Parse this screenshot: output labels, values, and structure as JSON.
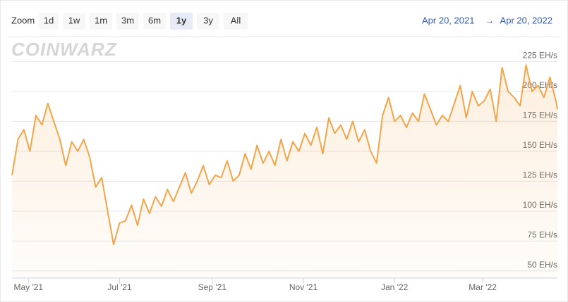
{
  "chart_data": {
    "type": "area",
    "zoom_label": "Zoom",
    "zoom_buttons": [
      "1d",
      "1w",
      "1m",
      "3m",
      "6m",
      "1y",
      "3y",
      "All"
    ],
    "selected_zoom": 5,
    "range_start": "Apr 20, 2021",
    "range_separator": "→",
    "range_end": "Apr 20, 2022",
    "watermark": "COINWARZ",
    "color": "#f2a54a",
    "grid": true,
    "xlim": [
      0,
      365
    ],
    "xticks": [
      {
        "value": 11,
        "label": "May '21"
      },
      {
        "value": 72,
        "label": "Jul '21"
      },
      {
        "value": 134,
        "label": "Sep '21"
      },
      {
        "value": 195,
        "label": "Nov '21"
      },
      {
        "value": 256,
        "label": "Jan '22"
      },
      {
        "value": 315,
        "label": "Mar '22"
      }
    ],
    "ylim": [
      44,
      247
    ],
    "yticks": [
      {
        "value": 50,
        "label": "50 EH/s"
      },
      {
        "value": 75,
        "label": "75 EH/s"
      },
      {
        "value": 100,
        "label": "100 EH/s"
      },
      {
        "value": 125,
        "label": "125 EH/s"
      },
      {
        "value": 150,
        "label": "150 EH/s"
      },
      {
        "value": 175,
        "label": "175 EH/s"
      },
      {
        "value": 200,
        "label": "200 EH/s"
      },
      {
        "value": 225,
        "label": "225 EH/s"
      }
    ],
    "x": [
      0,
      4,
      8,
      12,
      16,
      20,
      24,
      28,
      32,
      36,
      40,
      44,
      48,
      52,
      56,
      60,
      64,
      68,
      72,
      76,
      80,
      84,
      88,
      92,
      96,
      100,
      104,
      108,
      112,
      116,
      120,
      124,
      128,
      132,
      136,
      140,
      144,
      148,
      152,
      156,
      160,
      164,
      168,
      172,
      176,
      180,
      184,
      188,
      192,
      196,
      200,
      204,
      208,
      212,
      216,
      220,
      224,
      228,
      232,
      236,
      240,
      244,
      248,
      252,
      256,
      260,
      264,
      268,
      272,
      276,
      280,
      284,
      288,
      292,
      296,
      300,
      304,
      308,
      312,
      316,
      320,
      324,
      328,
      332,
      336,
      340,
      344,
      348,
      352,
      356,
      360,
      364,
      365
    ],
    "values": [
      130,
      160,
      168,
      150,
      180,
      172,
      190,
      175,
      160,
      138,
      158,
      150,
      160,
      145,
      120,
      128,
      100,
      72,
      90,
      92,
      105,
      88,
      110,
      98,
      112,
      104,
      118,
      108,
      120,
      132,
      115,
      125,
      138,
      122,
      130,
      128,
      142,
      125,
      130,
      148,
      135,
      155,
      140,
      150,
      138,
      160,
      142,
      158,
      150,
      165,
      155,
      170,
      148,
      178,
      165,
      172,
      160,
      175,
      158,
      168,
      150,
      140,
      180,
      195,
      175,
      180,
      170,
      182,
      175,
      198,
      185,
      172,
      180,
      175,
      190,
      205,
      178,
      200,
      188,
      192,
      202,
      175,
      220,
      200,
      195,
      188,
      222,
      200,
      205,
      195,
      212,
      192,
      185
    ]
  }
}
